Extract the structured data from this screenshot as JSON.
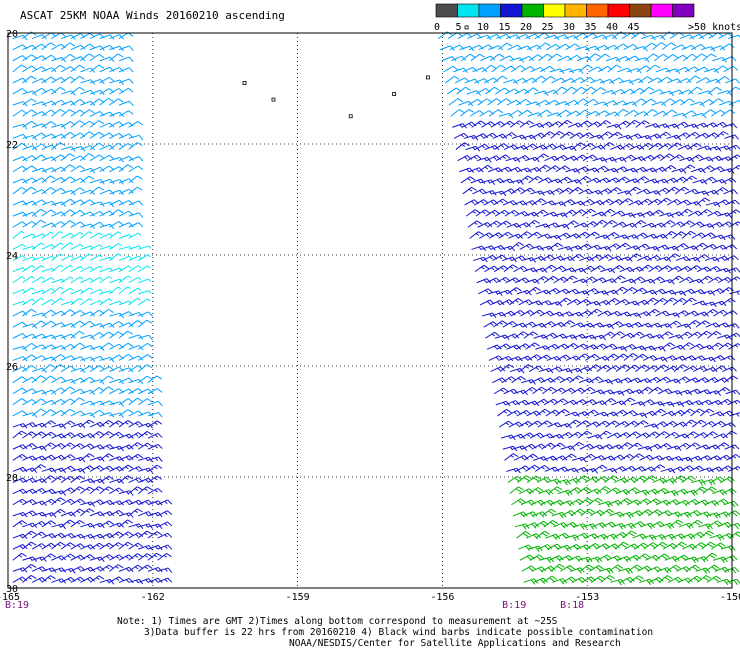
{
  "title": "ASCAT 25KM NOAA Winds 20160210 ascending",
  "legend": {
    "bins": [
      {
        "label": "0",
        "color": "#4d4d4d"
      },
      {
        "label": "5",
        "color": "#00e6f0"
      },
      {
        "label": "10",
        "color": "#00a0ff"
      },
      {
        "label": "15",
        "color": "#1414d2"
      },
      {
        "label": "20",
        "color": "#00b400"
      },
      {
        "label": "25",
        "color": "#ffff00"
      },
      {
        "label": "30",
        "color": "#ffb400"
      },
      {
        "label": "35",
        "color": "#ff6400"
      },
      {
        "label": "40",
        "color": "#ff0000"
      },
      {
        "label": "45",
        "color": "#8b4513"
      },
      {
        "label": "",
        "color": "#ff00ff"
      },
      {
        "label": "",
        "color": "#8000c0"
      }
    ],
    "last_label": ">50 knots"
  },
  "chart_data": {
    "type": "scatter",
    "title": "ASCAT 25KM NOAA Winds 20160210 ascending",
    "xlim": [
      -165,
      -150
    ],
    "ylim": [
      20,
      30
    ],
    "x_ticks": [
      -165,
      -162,
      -159,
      -156,
      -153,
      -150
    ],
    "x_tick_labels": [
      "-165",
      "-162",
      "-159",
      "-156",
      "-153",
      "-150"
    ],
    "y_ticks": [
      20,
      22,
      24,
      26,
      28,
      30
    ],
    "y_tick_labels": [
      "20",
      "22",
      "24",
      "26",
      "28",
      "30"
    ],
    "grid": true,
    "grid_style": "dotted",
    "islands": [
      {
        "lon": -160.1,
        "lat": 20.9
      },
      {
        "lon": -159.5,
        "lat": 21.2
      },
      {
        "lon": -157.9,
        "lat": 21.5
      },
      {
        "lon": -157.0,
        "lat": 21.1
      },
      {
        "lon": -156.3,
        "lat": 20.8
      },
      {
        "lon": -155.5,
        "lat": 19.9
      }
    ],
    "swaths": [
      {
        "name": "west swath",
        "lon_edges": [
          [
            -165.0,
            -162.6,
            20.0
          ],
          [
            -165.0,
            -161.7,
            30.0
          ]
        ],
        "zones": [
          {
            "lat_from": 20.0,
            "lat_to": 23.5,
            "speed_kt": [
              10,
              15
            ]
          },
          {
            "lat_from": 23.5,
            "lat_to": 25.0,
            "speed_kt": [
              5,
              10
            ]
          },
          {
            "lat_from": 25.0,
            "lat_to": 27.0,
            "speed_kt": [
              10,
              15
            ]
          },
          {
            "lat_from": 27.0,
            "lat_to": 30.0,
            "speed_kt": [
              15,
              20
            ]
          }
        ]
      },
      {
        "name": "east swath",
        "lon_edges": [
          [
            -156.2,
            -150.0,
            20.0
          ],
          [
            -154.4,
            -150.0,
            30.0
          ]
        ],
        "zones": [
          {
            "lat_from": 20.0,
            "lat_to": 21.5,
            "speed_kt": [
              10,
              15
            ]
          },
          {
            "lat_from": 21.5,
            "lat_to": 25.5,
            "speed_kt": [
              15,
              20
            ]
          },
          {
            "lat_from": 25.5,
            "lat_to": 28.0,
            "speed_kt": [
              15,
              20
            ]
          },
          {
            "lat_from": 28.0,
            "lat_to": 30.0,
            "speed_kt": [
              20,
              25
            ]
          }
        ]
      }
    ],
    "time_labels": [
      {
        "text": "B:19",
        "lon": -165.0
      },
      {
        "text": "B:19",
        "lon": -154.7
      },
      {
        "text": "B:18",
        "lon": -153.5
      }
    ]
  },
  "notes": {
    "line1": "Note: 1) Times are GMT 2)Times along bottom correspond to measurement at ~25S",
    "line2": "3)Data buffer is 22 hrs from 20160210 4) Black wind barbs indicate possible contamination",
    "line3": "NOAA/NESDIS/Center for Satellite Applications and Research"
  }
}
